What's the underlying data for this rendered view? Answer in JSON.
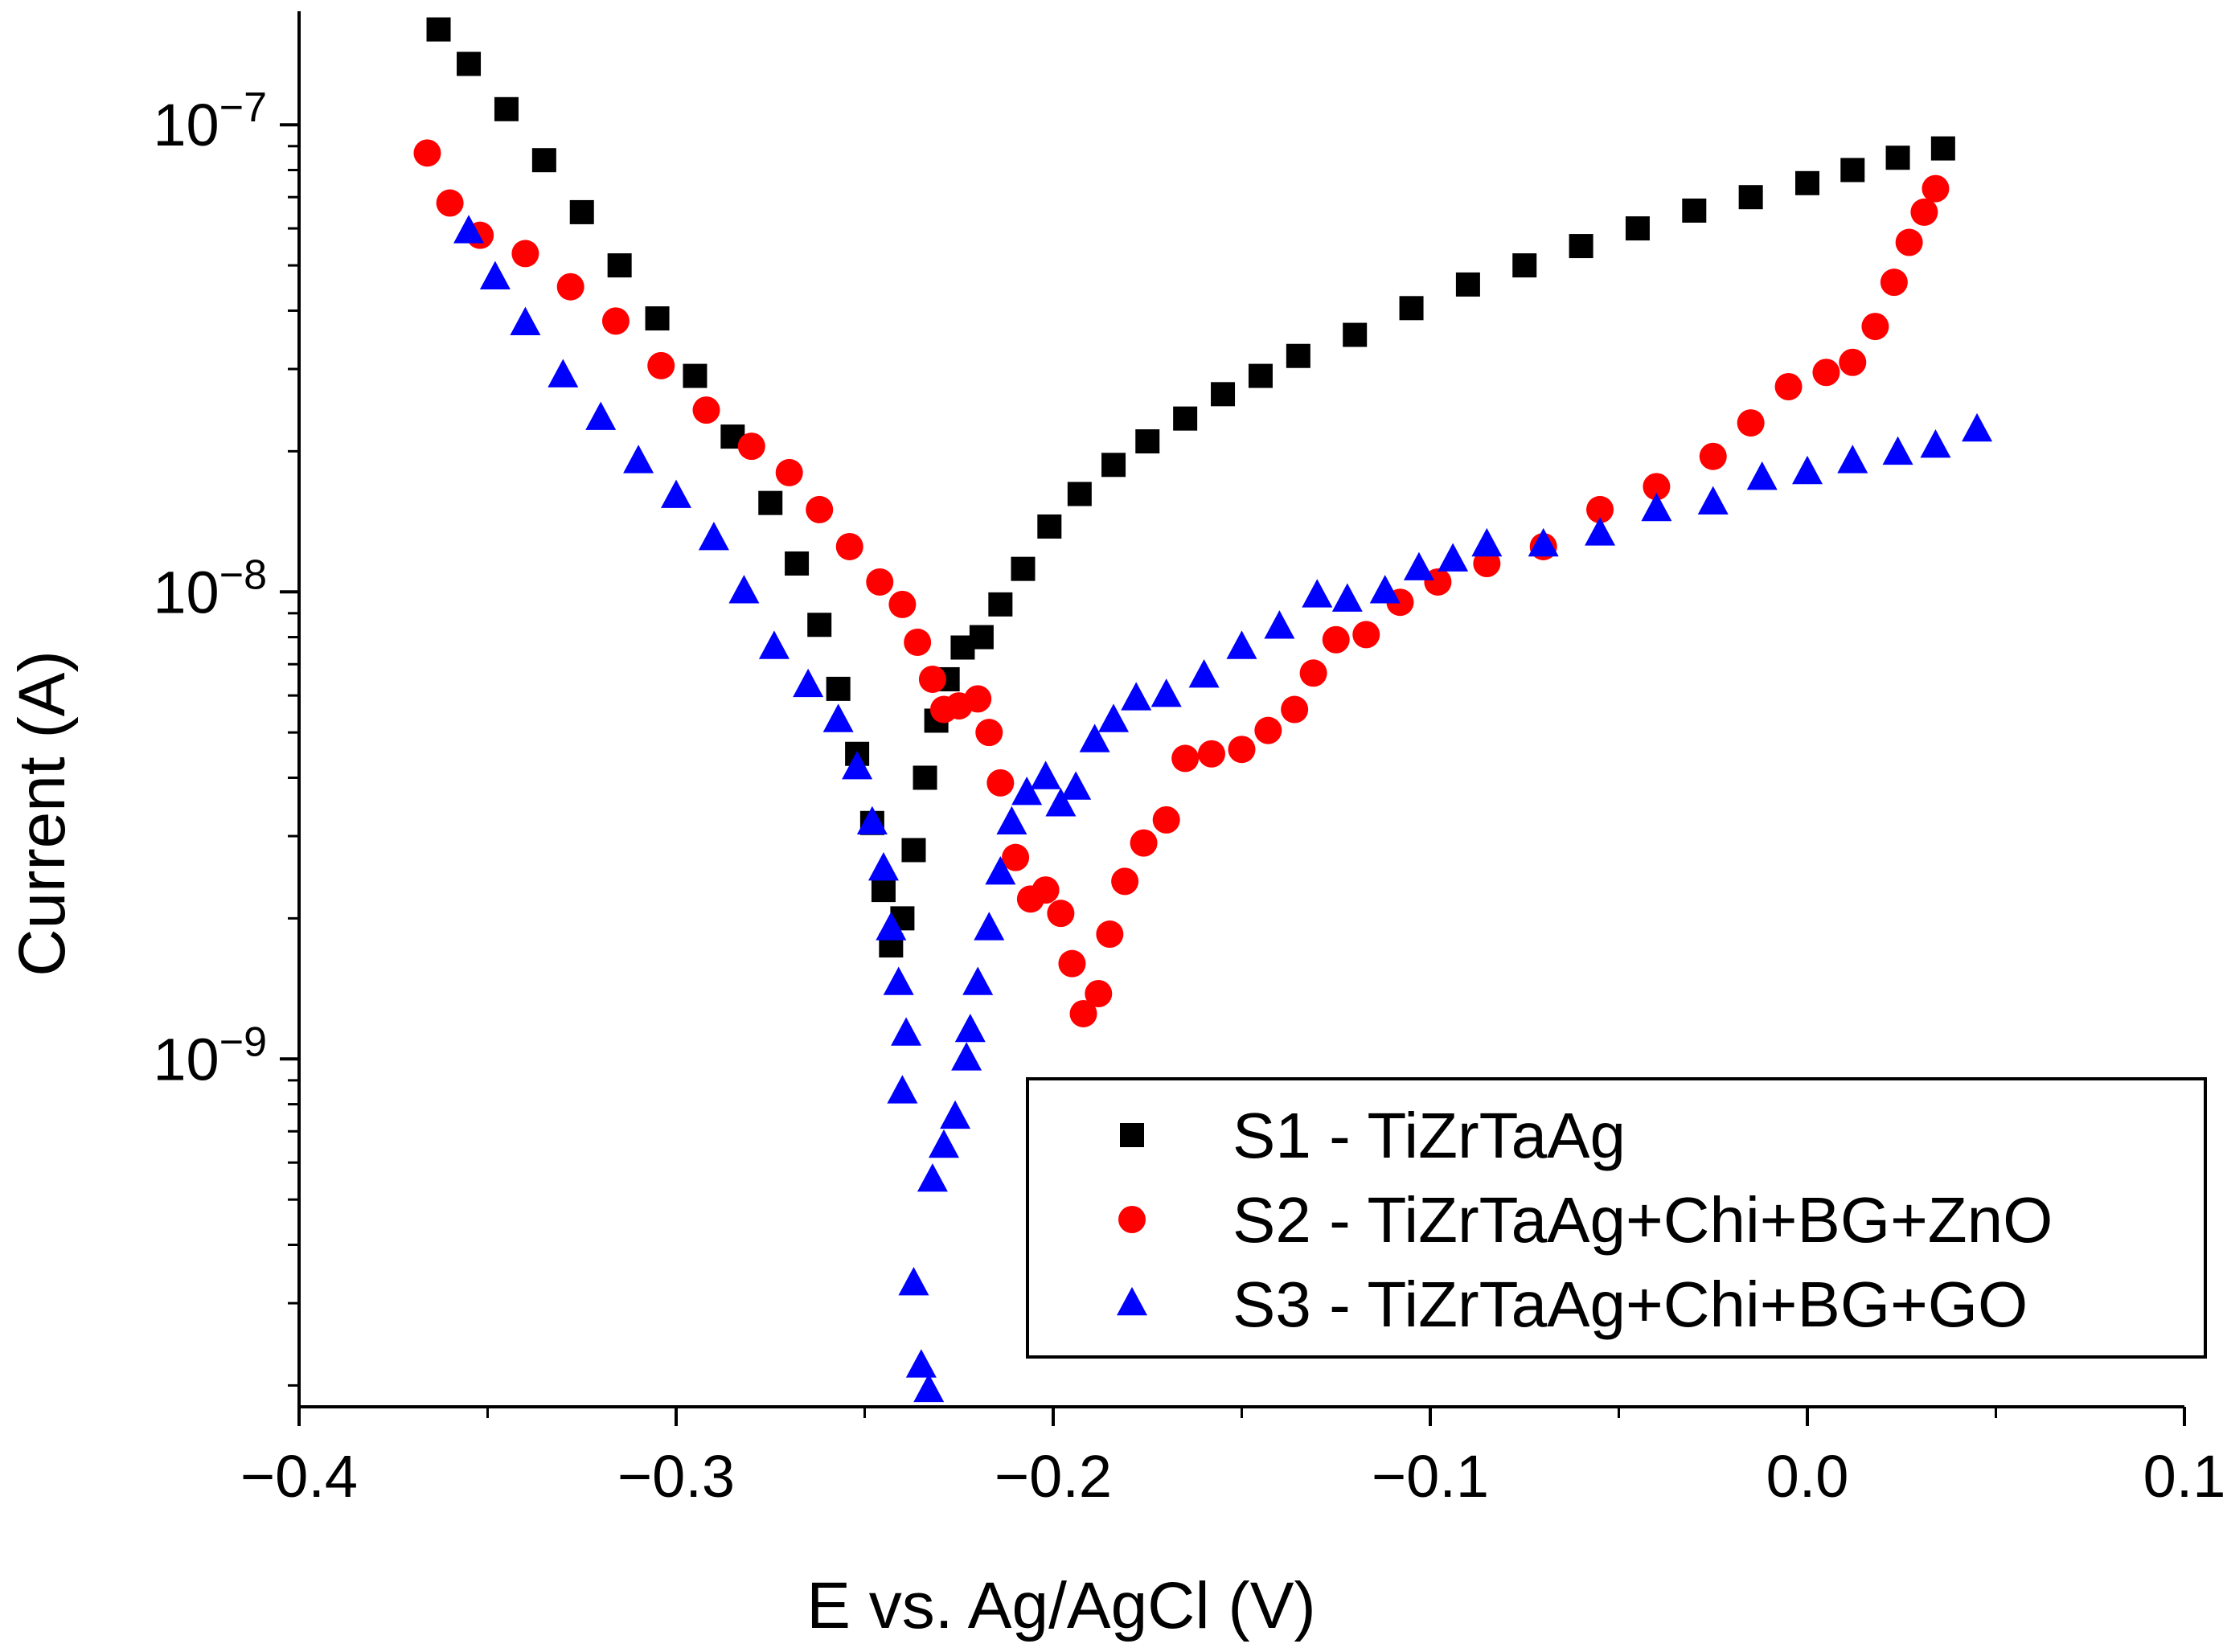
{
  "chart_data": {
    "type": "scatter",
    "title": "",
    "xlabel": "E vs. Ag/AgCl (V)",
    "ylabel": "Current (A)",
    "xlim": [
      -0.4,
      0.1
    ],
    "ylim": [
      1.8e-10,
      1.75e-07
    ],
    "yscale": "log",
    "x_ticks": [
      -0.4,
      -0.3,
      -0.2,
      -0.1,
      0.0,
      0.1
    ],
    "x_tick_labels": [
      "−0.4",
      "−0.3",
      "−0.2",
      "−0.1",
      "0.0",
      "0.1"
    ],
    "y_ticks": [
      1e-09,
      1e-08,
      1e-07
    ],
    "y_tick_labels": [
      {
        "base": "10",
        "exp": "−9"
      },
      {
        "base": "10",
        "exp": "−8"
      },
      {
        "base": "10",
        "exp": "−7"
      }
    ],
    "grid": false,
    "legend_position": "bottom-right",
    "series": [
      {
        "name": "S1 - TiZrTaAg",
        "marker": "square",
        "color": "#000000",
        "points": [
          [
            -0.363,
            1.6e-07
          ],
          [
            -0.355,
            1.35e-07
          ],
          [
            -0.345,
            1.08e-07
          ],
          [
            -0.335,
            8.4e-08
          ],
          [
            -0.325,
            6.5e-08
          ],
          [
            -0.315,
            5e-08
          ],
          [
            -0.305,
            3.85e-08
          ],
          [
            -0.295,
            2.9e-08
          ],
          [
            -0.285,
            2.15e-08
          ],
          [
            -0.275,
            1.55e-08
          ],
          [
            -0.268,
            1.15e-08
          ],
          [
            -0.262,
            8.5e-09
          ],
          [
            -0.257,
            6.2e-09
          ],
          [
            -0.252,
            4.5e-09
          ],
          [
            -0.248,
            3.2e-09
          ],
          [
            -0.245,
            2.3e-09
          ],
          [
            -0.243,
            1.75e-09
          ],
          [
            -0.24,
            2e-09
          ],
          [
            -0.237,
            2.8e-09
          ],
          [
            -0.234,
            4e-09
          ],
          [
            -0.231,
            5.3e-09
          ],
          [
            -0.228,
            6.5e-09
          ],
          [
            -0.224,
            7.6e-09
          ],
          [
            -0.219,
            8e-09
          ],
          [
            -0.214,
            9.4e-09
          ],
          [
            -0.208,
            1.12e-08
          ],
          [
            -0.201,
            1.38e-08
          ],
          [
            -0.193,
            1.62e-08
          ],
          [
            -0.184,
            1.87e-08
          ],
          [
            -0.175,
            2.1e-08
          ],
          [
            -0.165,
            2.35e-08
          ],
          [
            -0.155,
            2.65e-08
          ],
          [
            -0.145,
            2.9e-08
          ],
          [
            -0.135,
            3.2e-08
          ],
          [
            -0.12,
            3.55e-08
          ],
          [
            -0.105,
            4.05e-08
          ],
          [
            -0.09,
            4.55e-08
          ],
          [
            -0.075,
            5e-08
          ],
          [
            -0.06,
            5.5e-08
          ],
          [
            -0.045,
            6e-08
          ],
          [
            -0.03,
            6.55e-08
          ],
          [
            -0.015,
            7e-08
          ],
          [
            0.0,
            7.5e-08
          ],
          [
            0.012,
            8e-08
          ],
          [
            0.024,
            8.5e-08
          ],
          [
            0.036,
            8.9e-08
          ]
        ]
      },
      {
        "name": "S2 - TiZrTaAg+Chi+BG+ZnO",
        "marker": "circle",
        "color": "#ff0000",
        "points": [
          [
            -0.366,
            8.7e-08
          ],
          [
            -0.36,
            6.8e-08
          ],
          [
            -0.352,
            5.8e-08
          ],
          [
            -0.34,
            5.3e-08
          ],
          [
            -0.328,
            4.5e-08
          ],
          [
            -0.316,
            3.8e-08
          ],
          [
            -0.304,
            3.05e-08
          ],
          [
            -0.292,
            2.45e-08
          ],
          [
            -0.28,
            2.05e-08
          ],
          [
            -0.27,
            1.8e-08
          ],
          [
            -0.262,
            1.5e-08
          ],
          [
            -0.254,
            1.25e-08
          ],
          [
            -0.246,
            1.05e-08
          ],
          [
            -0.24,
            9.4e-09
          ],
          [
            -0.236,
            7.8e-09
          ],
          [
            -0.232,
            6.5e-09
          ],
          [
            -0.229,
            5.6e-09
          ],
          [
            -0.225,
            5.7e-09
          ],
          [
            -0.22,
            5.9e-09
          ],
          [
            -0.217,
            5e-09
          ],
          [
            -0.214,
            3.9e-09
          ],
          [
            -0.21,
            2.7e-09
          ],
          [
            -0.206,
            2.2e-09
          ],
          [
            -0.202,
            2.3e-09
          ],
          [
            -0.198,
            2.05e-09
          ],
          [
            -0.195,
            1.6e-09
          ],
          [
            -0.192,
            1.25e-09
          ],
          [
            -0.188,
            1.38e-09
          ],
          [
            -0.185,
            1.85e-09
          ],
          [
            -0.181,
            2.4e-09
          ],
          [
            -0.176,
            2.9e-09
          ],
          [
            -0.17,
            3.25e-09
          ],
          [
            -0.165,
            4.4e-09
          ],
          [
            -0.158,
            4.5e-09
          ],
          [
            -0.15,
            4.6e-09
          ],
          [
            -0.143,
            5.05e-09
          ],
          [
            -0.136,
            5.6e-09
          ],
          [
            -0.131,
            6.7e-09
          ],
          [
            -0.125,
            7.9e-09
          ],
          [
            -0.117,
            8.1e-09
          ],
          [
            -0.108,
            9.5e-09
          ],
          [
            -0.098,
            1.05e-08
          ],
          [
            -0.085,
            1.15e-08
          ],
          [
            -0.07,
            1.25e-08
          ],
          [
            -0.055,
            1.5e-08
          ],
          [
            -0.04,
            1.68e-08
          ],
          [
            -0.025,
            1.95e-08
          ],
          [
            -0.015,
            2.3e-08
          ],
          [
            -0.005,
            2.75e-08
          ],
          [
            0.005,
            2.95e-08
          ],
          [
            0.012,
            3.1e-08
          ],
          [
            0.018,
            3.7e-08
          ],
          [
            0.023,
            4.6e-08
          ],
          [
            0.027,
            5.6e-08
          ],
          [
            0.031,
            6.5e-08
          ],
          [
            0.034,
            7.3e-08
          ]
        ]
      },
      {
        "name": "S3 - TiZrTaAg+Chi+BG+GO",
        "marker": "triangle",
        "color": "#0000ff",
        "points": [
          [
            -0.355,
            5.9e-08
          ],
          [
            -0.348,
            4.7e-08
          ],
          [
            -0.34,
            3.75e-08
          ],
          [
            -0.33,
            2.9e-08
          ],
          [
            -0.32,
            2.35e-08
          ],
          [
            -0.31,
            1.9e-08
          ],
          [
            -0.3,
            1.6e-08
          ],
          [
            -0.29,
            1.3e-08
          ],
          [
            -0.282,
            1e-08
          ],
          [
            -0.274,
            7.6e-09
          ],
          [
            -0.265,
            6.3e-09
          ],
          [
            -0.257,
            5.3e-09
          ],
          [
            -0.252,
            4.2e-09
          ],
          [
            -0.248,
            3.2e-09
          ],
          [
            -0.245,
            2.55e-09
          ],
          [
            -0.243,
            1.9e-09
          ],
          [
            -0.241,
            1.45e-09
          ],
          [
            -0.239,
            1.13e-09
          ],
          [
            -0.24,
            8.5e-10
          ],
          [
            -0.237,
            3.3e-10
          ],
          [
            -0.235,
            2.2e-10
          ],
          [
            -0.233,
            1.95e-10
          ],
          [
            -0.232,
            5.5e-10
          ],
          [
            -0.229,
            6.5e-10
          ],
          [
            -0.226,
            7.5e-10
          ],
          [
            -0.223,
            1e-09
          ],
          [
            -0.222,
            1.15e-09
          ],
          [
            -0.22,
            1.45e-09
          ],
          [
            -0.217,
            1.9e-09
          ],
          [
            -0.214,
            2.5e-09
          ],
          [
            -0.211,
            3.2e-09
          ],
          [
            -0.207,
            3.7e-09
          ],
          [
            -0.202,
            4e-09
          ],
          [
            -0.198,
            3.5e-09
          ],
          [
            -0.194,
            3.8e-09
          ],
          [
            -0.189,
            4.8e-09
          ],
          [
            -0.184,
            5.3e-09
          ],
          [
            -0.178,
            5.9e-09
          ],
          [
            -0.17,
            6e-09
          ],
          [
            -0.16,
            6.6e-09
          ],
          [
            -0.15,
            7.6e-09
          ],
          [
            -0.14,
            8.4e-09
          ],
          [
            -0.13,
            9.8e-09
          ],
          [
            -0.122,
            9.6e-09
          ],
          [
            -0.112,
            1e-08
          ],
          [
            -0.103,
            1.12e-08
          ],
          [
            -0.094,
            1.17e-08
          ],
          [
            -0.085,
            1.26e-08
          ],
          [
            -0.07,
            1.26e-08
          ],
          [
            -0.055,
            1.33e-08
          ],
          [
            -0.04,
            1.5e-08
          ],
          [
            -0.025,
            1.55e-08
          ],
          [
            -0.012,
            1.75e-08
          ],
          [
            0.0,
            1.8e-08
          ],
          [
            0.012,
            1.9e-08
          ],
          [
            0.024,
            1.98e-08
          ],
          [
            0.034,
            2.05e-08
          ],
          [
            0.045,
            2.22e-08
          ]
        ]
      }
    ]
  }
}
